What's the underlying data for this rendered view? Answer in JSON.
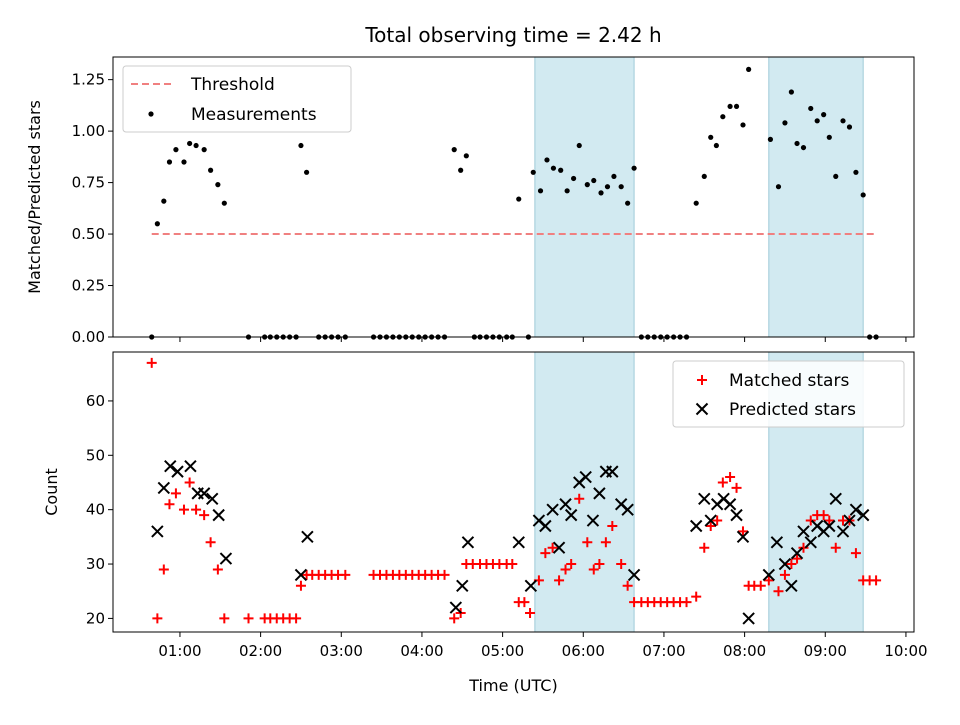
{
  "chart_data": [
    {
      "panel": "top",
      "type": "scatter",
      "title": "Total observing time = 2.42 h",
      "ylabel": "Matched/Predicted stars",
      "ylim": [
        0.0,
        1.36
      ],
      "xlim": [
        0.17,
        10.1
      ],
      "yticks": [
        0.0,
        0.25,
        0.5,
        0.75,
        1.0,
        1.25
      ],
      "ytick_labels": [
        "0.00",
        "0.25",
        "0.50",
        "0.75",
        "1.00",
        "1.25"
      ],
      "legend": "top-left",
      "shaded_x": [
        [
          5.4,
          6.63
        ],
        [
          8.3,
          9.47
        ]
      ],
      "shade_color": "#add8e6",
      "series": [
        {
          "name": "Threshold",
          "style": "dashed-line",
          "color": "#f08080",
          "x": [
            0.65,
            9.62
          ],
          "y": [
            0.5,
            0.5
          ]
        },
        {
          "name": "Measurements",
          "style": "dot",
          "color": "#000000",
          "points": [
            [
              0.65,
              0.0
            ],
            [
              0.72,
              0.55
            ],
            [
              0.8,
              0.66
            ],
            [
              0.87,
              0.85
            ],
            [
              0.95,
              0.91
            ],
            [
              1.05,
              0.85
            ],
            [
              1.12,
              0.94
            ],
            [
              1.2,
              0.93
            ],
            [
              1.3,
              0.91
            ],
            [
              1.38,
              0.81
            ],
            [
              1.47,
              0.74
            ],
            [
              1.55,
              0.65
            ],
            [
              1.85,
              0.0
            ],
            [
              2.05,
              0.0
            ],
            [
              2.12,
              0.0
            ],
            [
              2.2,
              0.0
            ],
            [
              2.28,
              0.0
            ],
            [
              2.36,
              0.0
            ],
            [
              2.44,
              0.0
            ],
            [
              2.5,
              0.93
            ],
            [
              2.57,
              0.8
            ],
            [
              2.72,
              0.0
            ],
            [
              2.8,
              0.0
            ],
            [
              2.88,
              0.0
            ],
            [
              2.96,
              0.0
            ],
            [
              3.05,
              0.0
            ],
            [
              3.4,
              0.0
            ],
            [
              3.48,
              0.0
            ],
            [
              3.56,
              0.0
            ],
            [
              3.64,
              0.0
            ],
            [
              3.72,
              0.0
            ],
            [
              3.8,
              0.0
            ],
            [
              3.88,
              0.0
            ],
            [
              3.96,
              0.0
            ],
            [
              4.04,
              0.0
            ],
            [
              4.12,
              0.0
            ],
            [
              4.2,
              0.0
            ],
            [
              4.28,
              0.0
            ],
            [
              4.4,
              0.91
            ],
            [
              4.48,
              0.81
            ],
            [
              4.55,
              0.88
            ],
            [
              4.65,
              0.0
            ],
            [
              4.72,
              0.0
            ],
            [
              4.8,
              0.0
            ],
            [
              4.88,
              0.0
            ],
            [
              4.96,
              0.0
            ],
            [
              5.05,
              0.0
            ],
            [
              5.12,
              0.0
            ],
            [
              5.2,
              0.67
            ],
            [
              5.32,
              0.0
            ],
            [
              5.38,
              0.8
            ],
            [
              5.47,
              0.71
            ],
            [
              5.55,
              0.86
            ],
            [
              5.63,
              0.82
            ],
            [
              5.72,
              0.81
            ],
            [
              5.8,
              0.71
            ],
            [
              5.88,
              0.77
            ],
            [
              5.95,
              0.93
            ],
            [
              6.05,
              0.74
            ],
            [
              6.13,
              0.76
            ],
            [
              6.22,
              0.7
            ],
            [
              6.3,
              0.73
            ],
            [
              6.38,
              0.78
            ],
            [
              6.47,
              0.73
            ],
            [
              6.55,
              0.65
            ],
            [
              6.63,
              0.82
            ],
            [
              6.72,
              0.0
            ],
            [
              6.8,
              0.0
            ],
            [
              6.88,
              0.0
            ],
            [
              6.96,
              0.0
            ],
            [
              7.04,
              0.0
            ],
            [
              7.12,
              0.0
            ],
            [
              7.2,
              0.0
            ],
            [
              7.28,
              0.0
            ],
            [
              7.4,
              0.65
            ],
            [
              7.5,
              0.78
            ],
            [
              7.58,
              0.97
            ],
            [
              7.65,
              0.93
            ],
            [
              7.73,
              1.07
            ],
            [
              7.82,
              1.12
            ],
            [
              7.9,
              1.12
            ],
            [
              7.98,
              1.03
            ],
            [
              8.05,
              1.3
            ],
            [
              8.32,
              0.96
            ],
            [
              8.42,
              0.73
            ],
            [
              8.5,
              1.04
            ],
            [
              8.58,
              1.19
            ],
            [
              8.65,
              0.94
            ],
            [
              8.73,
              0.92
            ],
            [
              8.82,
              1.11
            ],
            [
              8.9,
              1.05
            ],
            [
              8.98,
              1.08
            ],
            [
              9.05,
              0.97
            ],
            [
              9.13,
              0.78
            ],
            [
              9.22,
              1.05
            ],
            [
              9.3,
              1.02
            ],
            [
              9.38,
              0.8
            ],
            [
              9.47,
              0.69
            ],
            [
              9.55,
              0.0
            ],
            [
              9.63,
              0.0
            ]
          ]
        }
      ]
    },
    {
      "panel": "bottom",
      "type": "scatter",
      "xlabel": "Time (UTC)",
      "ylabel": "Count",
      "ylim": [
        17.5,
        69
      ],
      "xlim": [
        0.17,
        10.1
      ],
      "yticks": [
        20,
        30,
        40,
        50,
        60
      ],
      "ytick_labels": [
        "20",
        "30",
        "40",
        "50",
        "60"
      ],
      "xticks": [
        1,
        2,
        3,
        4,
        5,
        6,
        7,
        8,
        9,
        10
      ],
      "xtick_labels": [
        "01:00",
        "02:00",
        "03:00",
        "04:00",
        "05:00",
        "06:00",
        "07:00",
        "08:00",
        "09:00",
        "10:00"
      ],
      "legend": "top-right",
      "shaded_x": [
        [
          5.4,
          6.63
        ],
        [
          8.3,
          9.47
        ]
      ],
      "shade_color": "#add8e6",
      "series": [
        {
          "name": "Matched stars",
          "style": "plus",
          "color": "#ff0000",
          "points": [
            [
              0.65,
              67
            ],
            [
              0.72,
              20
            ],
            [
              0.8,
              29
            ],
            [
              0.87,
              41
            ],
            [
              0.95,
              43
            ],
            [
              1.05,
              40
            ],
            [
              1.12,
              45
            ],
            [
              1.2,
              40
            ],
            [
              1.3,
              39
            ],
            [
              1.38,
              34
            ],
            [
              1.47,
              29
            ],
            [
              1.55,
              20
            ],
            [
              1.85,
              20
            ],
            [
              2.05,
              20
            ],
            [
              2.12,
              20
            ],
            [
              2.2,
              20
            ],
            [
              2.28,
              20
            ],
            [
              2.36,
              20
            ],
            [
              2.44,
              20
            ],
            [
              2.5,
              26
            ],
            [
              2.57,
              28
            ],
            [
              2.64,
              28
            ],
            [
              2.72,
              28
            ],
            [
              2.8,
              28
            ],
            [
              2.88,
              28
            ],
            [
              2.96,
              28
            ],
            [
              3.05,
              28
            ],
            [
              3.4,
              28
            ],
            [
              3.48,
              28
            ],
            [
              3.56,
              28
            ],
            [
              3.64,
              28
            ],
            [
              3.72,
              28
            ],
            [
              3.8,
              28
            ],
            [
              3.88,
              28
            ],
            [
              3.96,
              28
            ],
            [
              4.04,
              28
            ],
            [
              4.12,
              28
            ],
            [
              4.2,
              28
            ],
            [
              4.28,
              28
            ],
            [
              4.4,
              20
            ],
            [
              4.48,
              21
            ],
            [
              4.55,
              30
            ],
            [
              4.63,
              30
            ],
            [
              4.72,
              30
            ],
            [
              4.8,
              30
            ],
            [
              4.88,
              30
            ],
            [
              4.96,
              30
            ],
            [
              5.05,
              30
            ],
            [
              5.12,
              30
            ],
            [
              5.2,
              23
            ],
            [
              5.27,
              23
            ],
            [
              5.34,
              21
            ],
            [
              5.45,
              27
            ],
            [
              5.53,
              32
            ],
            [
              5.62,
              33
            ],
            [
              5.7,
              27
            ],
            [
              5.78,
              29
            ],
            [
              5.85,
              30
            ],
            [
              5.95,
              42
            ],
            [
              6.05,
              34
            ],
            [
              6.13,
              29
            ],
            [
              6.2,
              30
            ],
            [
              6.28,
              34
            ],
            [
              6.36,
              37
            ],
            [
              6.47,
              30
            ],
            [
              6.55,
              26
            ],
            [
              6.63,
              23
            ],
            [
              6.72,
              23
            ],
            [
              6.8,
              23
            ],
            [
              6.88,
              23
            ],
            [
              6.96,
              23
            ],
            [
              7.04,
              23
            ],
            [
              7.12,
              23
            ],
            [
              7.2,
              23
            ],
            [
              7.28,
              23
            ],
            [
              7.4,
              24
            ],
            [
              7.5,
              33
            ],
            [
              7.58,
              37
            ],
            [
              7.66,
              38
            ],
            [
              7.73,
              45
            ],
            [
              7.82,
              46
            ],
            [
              7.9,
              44
            ],
            [
              7.98,
              36
            ],
            [
              8.05,
              26
            ],
            [
              8.12,
              26
            ],
            [
              8.2,
              26
            ],
            [
              8.3,
              27
            ],
            [
              8.42,
              25
            ],
            [
              8.5,
              28
            ],
            [
              8.58,
              30
            ],
            [
              8.65,
              31
            ],
            [
              8.73,
              33
            ],
            [
              8.82,
              38
            ],
            [
              8.9,
              39
            ],
            [
              8.98,
              39
            ],
            [
              9.05,
              38
            ],
            [
              9.13,
              33
            ],
            [
              9.22,
              38
            ],
            [
              9.3,
              38
            ],
            [
              9.38,
              32
            ],
            [
              9.47,
              27
            ],
            [
              9.55,
              27
            ],
            [
              9.63,
              27
            ]
          ]
        },
        {
          "name": "Predicted stars",
          "style": "x",
          "color": "#000000",
          "points": [
            [
              0.72,
              36
            ],
            [
              0.8,
              44
            ],
            [
              0.88,
              48
            ],
            [
              0.97,
              47
            ],
            [
              1.13,
              48
            ],
            [
              1.22,
              43
            ],
            [
              1.3,
              43
            ],
            [
              1.4,
              42
            ],
            [
              1.48,
              39
            ],
            [
              1.57,
              31
            ],
            [
              2.5,
              28
            ],
            [
              2.58,
              35
            ],
            [
              4.42,
              22
            ],
            [
              4.5,
              26
            ],
            [
              4.57,
              34
            ],
            [
              5.2,
              34
            ],
            [
              5.35,
              26
            ],
            [
              5.45,
              38
            ],
            [
              5.53,
              37
            ],
            [
              5.62,
              40
            ],
            [
              5.7,
              33
            ],
            [
              5.78,
              41
            ],
            [
              5.85,
              39
            ],
            [
              5.95,
              45
            ],
            [
              6.03,
              46
            ],
            [
              6.12,
              38
            ],
            [
              6.2,
              43
            ],
            [
              6.28,
              47
            ],
            [
              6.36,
              47
            ],
            [
              6.47,
              41
            ],
            [
              6.55,
              40
            ],
            [
              6.63,
              28
            ],
            [
              7.4,
              37
            ],
            [
              7.5,
              42
            ],
            [
              7.58,
              38
            ],
            [
              7.66,
              41
            ],
            [
              7.74,
              42
            ],
            [
              7.82,
              41
            ],
            [
              7.9,
              39
            ],
            [
              7.98,
              35
            ],
            [
              8.05,
              20
            ],
            [
              8.3,
              28
            ],
            [
              8.4,
              34
            ],
            [
              8.5,
              30
            ],
            [
              8.58,
              26
            ],
            [
              8.65,
              32
            ],
            [
              8.73,
              36
            ],
            [
              8.82,
              34
            ],
            [
              8.9,
              37
            ],
            [
              8.98,
              36
            ],
            [
              9.05,
              37
            ],
            [
              9.13,
              42
            ],
            [
              9.22,
              36
            ],
            [
              9.3,
              38
            ],
            [
              9.38,
              40
            ],
            [
              9.47,
              39
            ]
          ]
        }
      ]
    }
  ]
}
